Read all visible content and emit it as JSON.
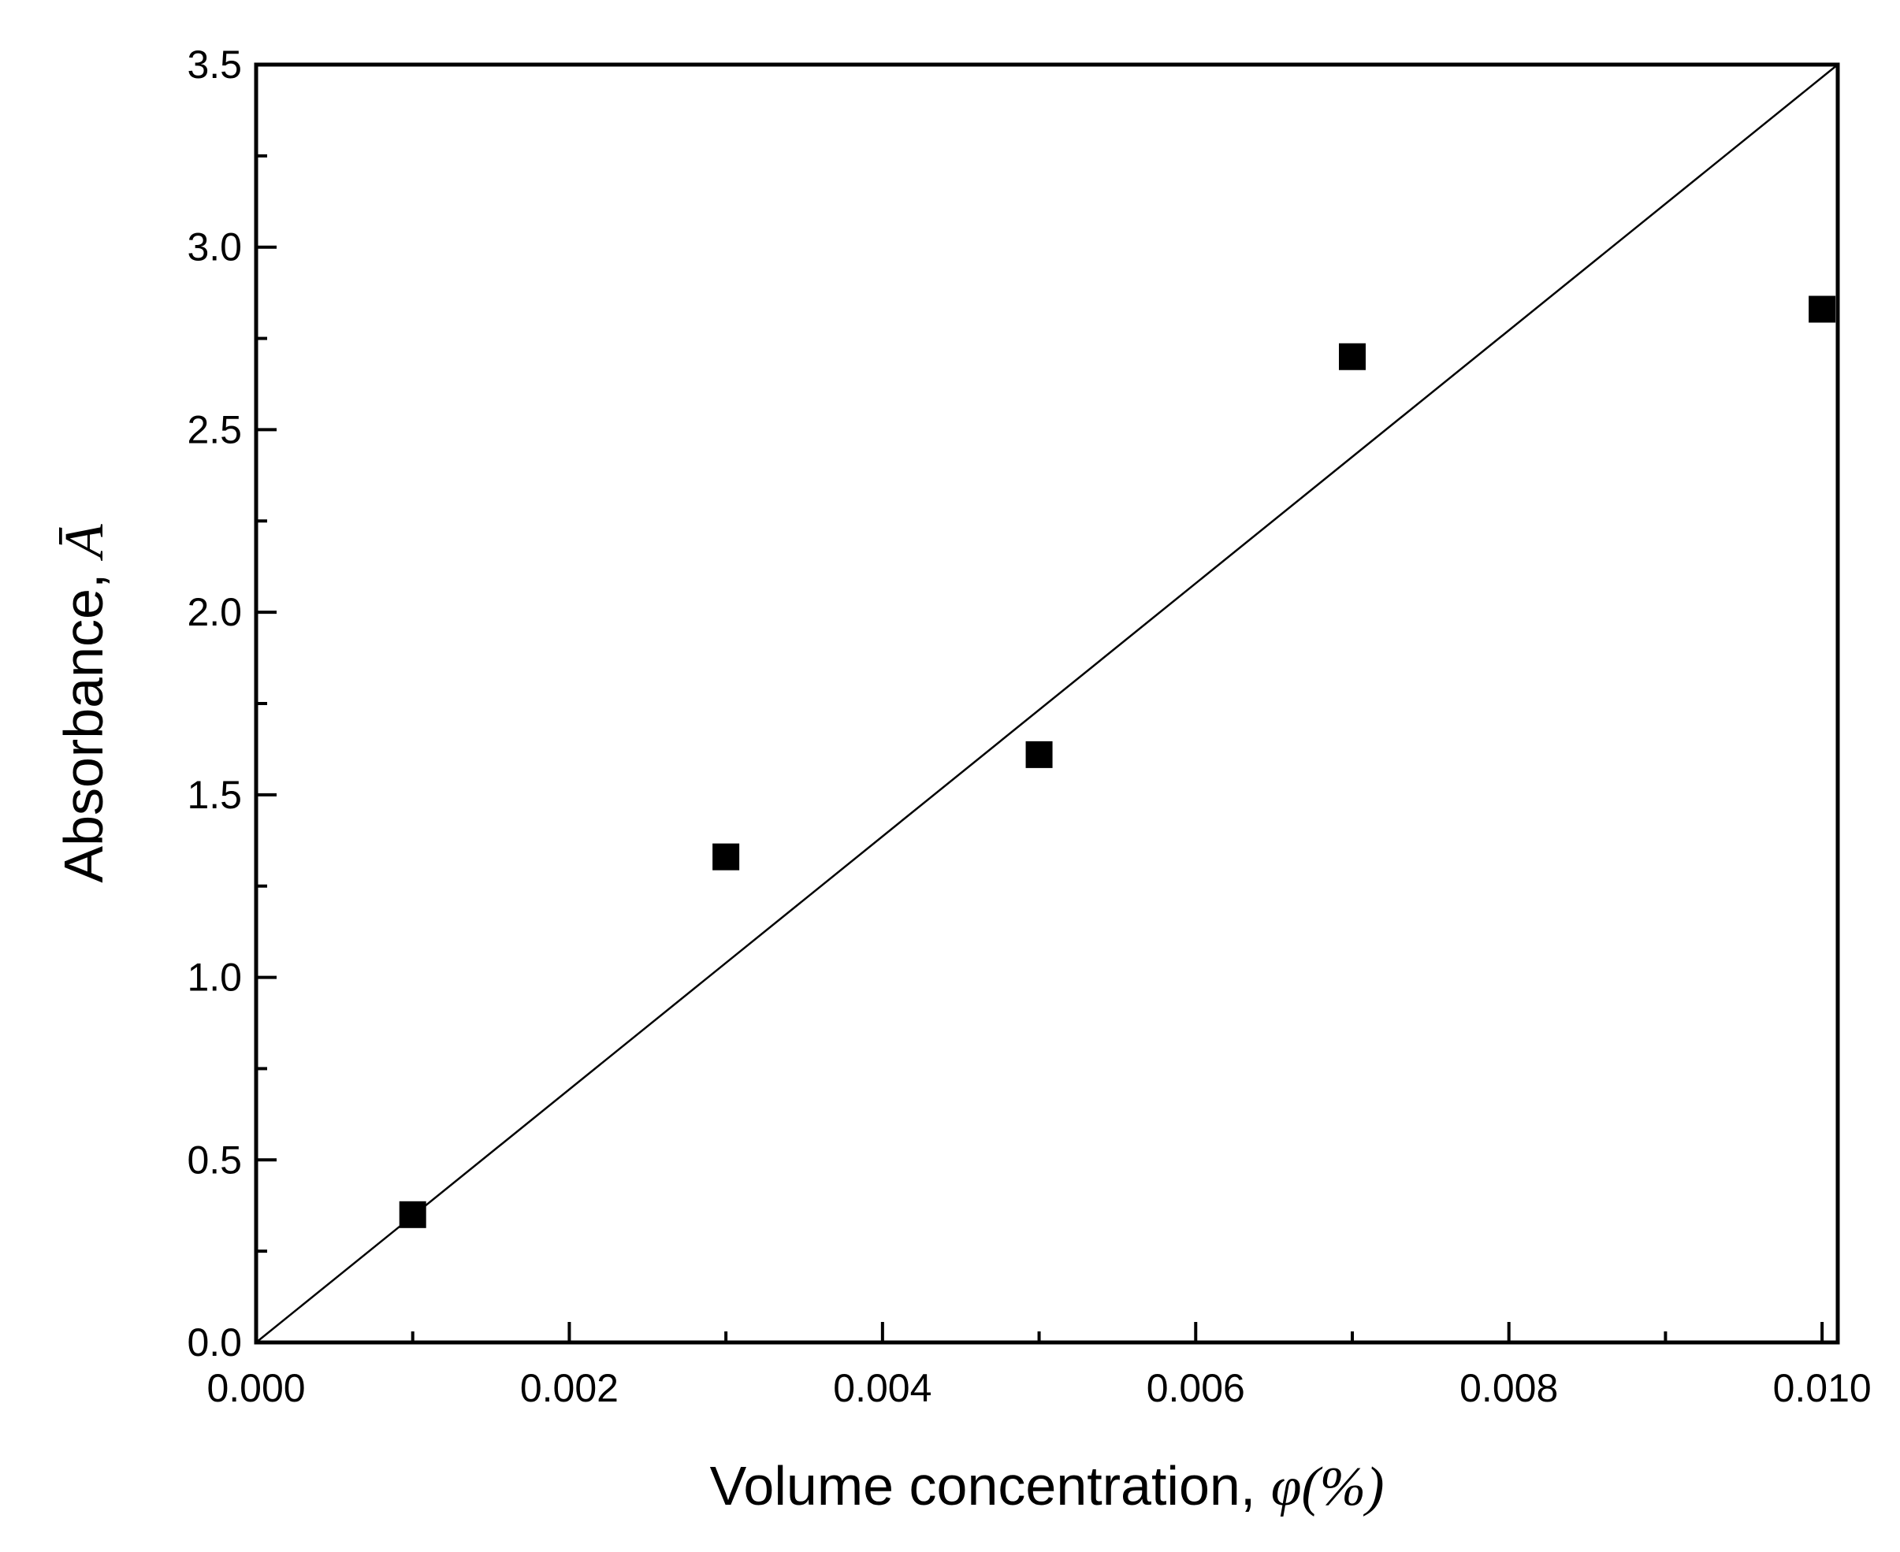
{
  "chart_data": {
    "type": "scatter",
    "xlabel": {
      "text": "Volume concentration, ",
      "symbol": "φ",
      "unit": "(%)"
    },
    "ylabel": {
      "text": "Absorbance, ",
      "symbol": "Ā"
    },
    "xlim": [
      0.0,
      0.0101
    ],
    "ylim": [
      0.0,
      3.5
    ],
    "x_ticks": [
      0.0,
      0.002,
      0.004,
      0.006,
      0.008,
      0.01
    ],
    "x_tick_labels": [
      "0.000",
      "0.002",
      "0.004",
      "0.006",
      "0.008",
      "0.010"
    ],
    "x_minor_ticks": [
      0.001,
      0.003,
      0.005,
      0.007,
      0.009
    ],
    "y_ticks": [
      0.0,
      0.5,
      1.0,
      1.5,
      2.0,
      2.5,
      3.0,
      3.5
    ],
    "y_tick_labels": [
      "0.0",
      "0.5",
      "1.0",
      "1.5",
      "2.0",
      "2.5",
      "3.0",
      "3.5"
    ],
    "y_minor_ticks": [
      0.25,
      0.75,
      1.25,
      1.75,
      2.25,
      2.75,
      3.25
    ],
    "grid": false,
    "legend": "none",
    "series": [
      {
        "marker": "square",
        "color": "#000000",
        "x": [
          0.001,
          0.003,
          0.005,
          0.007,
          0.01
        ],
        "y": [
          0.35,
          1.33,
          1.61,
          2.7,
          2.83
        ]
      }
    ],
    "fit_line": {
      "color": "#000000",
      "x": [
        0.0,
        0.0101
      ],
      "y": [
        0.0,
        3.5
      ]
    }
  }
}
